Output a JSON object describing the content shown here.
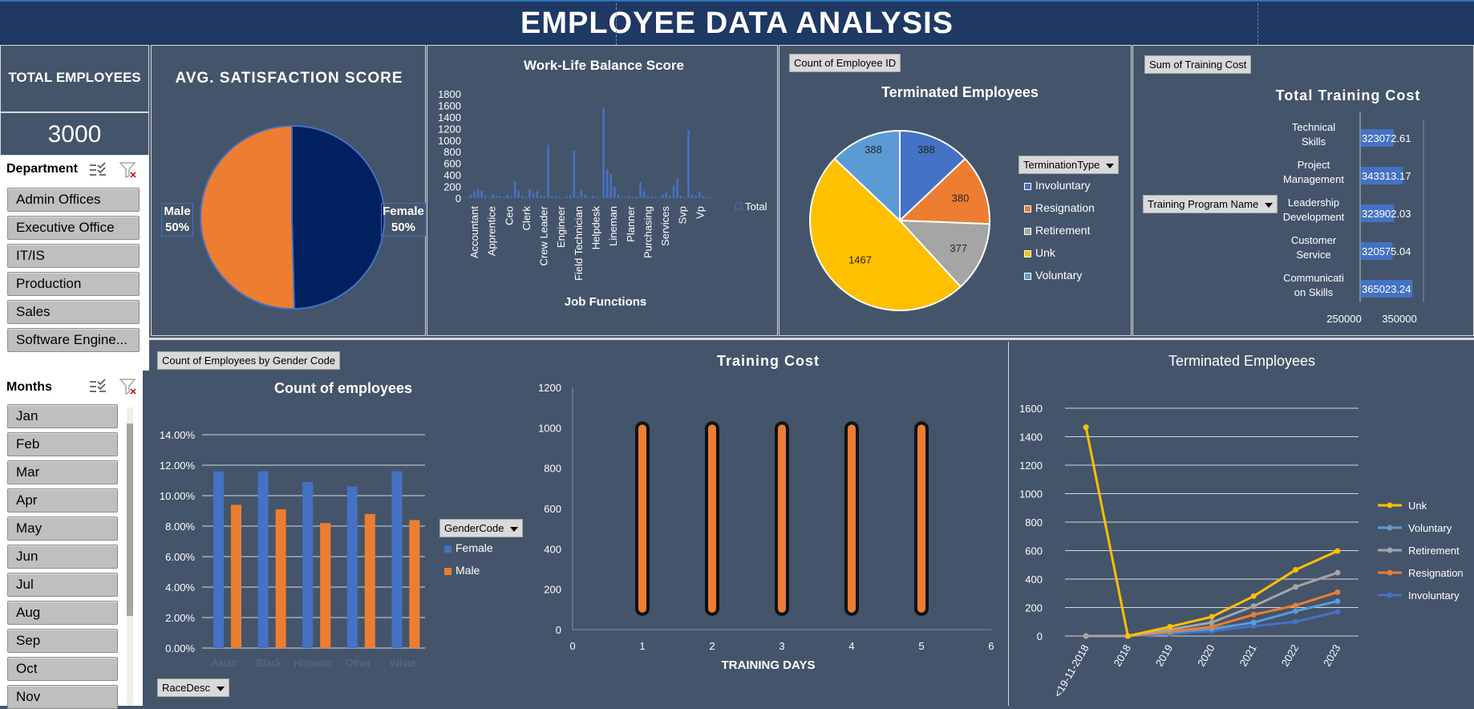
{
  "header": {
    "title": "EMPLOYEE DATA ANALYSIS"
  },
  "total": {
    "label": "TOTAL EMPLOYEES",
    "value": "3000"
  },
  "department": {
    "label": "Department",
    "items": [
      "Admin Offices",
      "Executive Office",
      "IT/IS",
      "Production",
      "Sales",
      "Software Engine..."
    ]
  },
  "months": {
    "label": "Months",
    "items": [
      "Jan",
      "Feb",
      "Mar",
      "Apr",
      "May",
      "Jun",
      "Jul",
      "Aug",
      "Sep",
      "Oct",
      "Nov"
    ]
  },
  "satisfaction": {
    "title": "AVG. SATISFACTION SCORE",
    "male_label": "Male",
    "male_pct": "50%",
    "female_label": "Female",
    "female_pct": "50%",
    "colors": {
      "male": "#ed7d31",
      "female": "#002060"
    }
  },
  "terminated_pie": {
    "tag": "Count of Employee ID",
    "title": "Terminated Employees",
    "dropdown": "TerminationType",
    "legend": [
      "Involuntary",
      "Resignation",
      "Retirement",
      "Unk",
      "Voluntary"
    ]
  },
  "training_total": {
    "tag": "Sum of Training Cost",
    "title": "Total Training Cost",
    "dropdown": "Training Program Name"
  },
  "gender_chart": {
    "tag": "Count of Employees by Gender Code",
    "title": "Count of employees",
    "dropdown": "GenderCode",
    "race_dropdown": "RaceDesc",
    "legend": [
      "Female",
      "Male"
    ]
  },
  "training_cost": {
    "title": "Training Cost",
    "xlabel": "TRAINING DAYS"
  },
  "terminated_line": {
    "title": "Terminated Employees"
  },
  "chart_data": [
    {
      "type": "pie",
      "title": "AVG. SATISFACTION SCORE",
      "slices": [
        {
          "label": "Female",
          "value": 50,
          "color": "#002060"
        },
        {
          "label": "Male",
          "value": 50,
          "color": "#ed7d31"
        }
      ]
    },
    {
      "type": "bar",
      "title": "Work-Life Balance Score",
      "xlabel": "Job Functions",
      "legend": [
        "Total"
      ],
      "tick_labels": [
        "Accountant",
        "Apprentice",
        "Ceo",
        "Clerk",
        "Crew Leader",
        "Engineer",
        "Field Technician",
        "Helpdesk",
        "Lineman",
        "Planner",
        "Purchasing",
        "Services",
        "Svp",
        "Vp"
      ],
      "ylim": [
        0,
        1800
      ],
      "yticks": [
        0,
        200,
        400,
        600,
        800,
        1000,
        1200,
        1400,
        1600,
        1800
      ],
      "values": [
        20,
        60,
        120,
        160,
        130,
        40,
        20,
        70,
        40,
        30,
        20,
        60,
        30,
        290,
        120,
        40,
        20,
        150,
        80,
        120,
        40,
        30,
        920,
        30,
        40,
        20,
        10,
        30,
        60,
        820,
        30,
        140,
        60,
        20,
        40,
        20,
        10,
        1570,
        500,
        420,
        200,
        60,
        30,
        20,
        40,
        20,
        30,
        280,
        120,
        40,
        30,
        20,
        20,
        60,
        100,
        40,
        210,
        340,
        40,
        20,
        1180,
        60,
        40,
        110,
        40,
        20,
        20,
        10
      ]
    },
    {
      "type": "pie",
      "title": "Terminated Employees",
      "slices": [
        {
          "label": "Involuntary",
          "value": 388,
          "color": "#4472c4"
        },
        {
          "label": "Resignation",
          "value": 380,
          "color": "#ed7d31"
        },
        {
          "label": "Retirement",
          "value": 377,
          "color": "#a5a5a5"
        },
        {
          "label": "Unk",
          "value": 1467,
          "color": "#ffc000"
        },
        {
          "label": "Voluntary",
          "value": 388,
          "color": "#5b9bd5"
        }
      ]
    },
    {
      "type": "bar",
      "orientation": "horizontal",
      "title": "Total Training Cost",
      "categories": [
        "Technical Skills",
        "Project Management",
        "Leadership Development",
        "Customer Service",
        "Communication Skills"
      ],
      "category_lines": [
        [
          "Technical",
          "Skills"
        ],
        [
          "Project",
          "Management"
        ],
        [
          "Leadership",
          "Development"
        ],
        [
          "Customer",
          "Service"
        ],
        [
          "Communicati",
          "on Skills"
        ]
      ],
      "values": [
        323072.61,
        343313.17,
        323902.03,
        320575.04,
        365023.24
      ],
      "value_labels": [
        "323072.61",
        "343313.17",
        "323902.03",
        "320575.04",
        "365023.24"
      ],
      "xticks": [
        "250000",
        "350000"
      ],
      "xlim": [
        250000,
        390000
      ]
    },
    {
      "type": "bar",
      "title": "Count of employees",
      "categories": [
        "Asian",
        "Black",
        "Hispanic",
        "Other",
        "White"
      ],
      "series": [
        {
          "name": "Female",
          "values": [
            11.6,
            11.6,
            10.9,
            10.6,
            11.6
          ],
          "color": "#4472c4"
        },
        {
          "name": "Male",
          "values": [
            9.4,
            9.1,
            8.2,
            8.8,
            8.4
          ],
          "color": "#ed7d31"
        }
      ],
      "ylim": [
        0,
        14
      ],
      "yticks": [
        "0.00%",
        "2.00%",
        "4.00%",
        "6.00%",
        "8.00%",
        "10.00%",
        "12.00%",
        "14.00%"
      ]
    },
    {
      "type": "scatter",
      "title": "Training Cost",
      "xlabel": "TRAINING DAYS",
      "xlim": [
        0,
        6
      ],
      "ylim": [
        0,
        1200
      ],
      "xticks": [
        "0",
        "1",
        "2",
        "3",
        "4",
        "5",
        "6"
      ],
      "yticks": [
        "0",
        "200",
        "400",
        "600",
        "800",
        "1000",
        "1200"
      ],
      "columns": [
        {
          "x": 1,
          "y_min": 100,
          "y_max": 1000
        },
        {
          "x": 2,
          "y_min": 100,
          "y_max": 1000
        },
        {
          "x": 3,
          "y_min": 100,
          "y_max": 1000
        },
        {
          "x": 4,
          "y_min": 100,
          "y_max": 1000
        },
        {
          "x": 5,
          "y_min": 100,
          "y_max": 1000
        }
      ],
      "color": "#ed7d31"
    },
    {
      "type": "line",
      "title": "Terminated Employees",
      "x": [
        "<19-11-2018",
        "2018",
        "2019",
        "2020",
        "2021",
        "2022",
        "2023"
      ],
      "ylim": [
        0,
        1600
      ],
      "yticks": [
        "0",
        "200",
        "400",
        "600",
        "800",
        "1000",
        "1200",
        "1400",
        "1600"
      ],
      "series": [
        {
          "name": "Unk",
          "values": [
            1467,
            0,
            65,
            135,
            280,
            465,
            597
          ],
          "color": "#ffc000"
        },
        {
          "name": "Voluntary",
          "values": [
            0,
            0,
            25,
            50,
            95,
            175,
            245
          ],
          "color": "#5b9bd5"
        },
        {
          "name": "Retirement",
          "values": [
            0,
            0,
            45,
            95,
            210,
            345,
            445
          ],
          "color": "#a5a5a5"
        },
        {
          "name": "Resignation",
          "values": [
            0,
            0,
            30,
            65,
            150,
            215,
            308
          ],
          "color": "#ed7d31"
        },
        {
          "name": "Involuntary",
          "values": [
            0,
            0,
            15,
            35,
            70,
            100,
            170
          ],
          "color": "#4472c4"
        }
      ]
    }
  ]
}
